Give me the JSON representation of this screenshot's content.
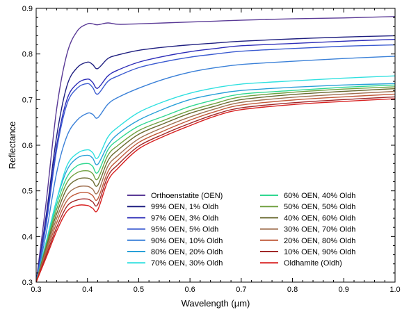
{
  "chart_data": {
    "type": "line",
    "title": "",
    "xlabel": "Wavelength (µm)",
    "ylabel": "Reflectance",
    "xlim": [
      0.3,
      1.0
    ],
    "ylim": [
      0.3,
      0.9
    ],
    "x_ticks": [
      "0.3",
      "0.4",
      "0.5",
      "0.6",
      "0.7",
      "0.8",
      "0.9",
      "1.0"
    ],
    "y_ticks": [
      "0.3",
      "0.4",
      "0.5",
      "0.6",
      "0.7",
      "0.8",
      "0.9"
    ],
    "grid": false,
    "legend_position": "bottom-right",
    "x": [
      0.3,
      0.32,
      0.34,
      0.36,
      0.38,
      0.4,
      0.41,
      0.42,
      0.44,
      0.46,
      0.5,
      0.55,
      0.6,
      0.65,
      0.7,
      0.8,
      0.9,
      1.0
    ],
    "series": [
      {
        "name": "Orthoenstatite (OEN)",
        "color": "#5a3a96",
        "values": [
          0.3,
          0.48,
          0.68,
          0.8,
          0.85,
          0.866,
          0.866,
          0.864,
          0.868,
          0.865,
          0.866,
          0.868,
          0.87,
          0.872,
          0.874,
          0.877,
          0.879,
          0.882
        ]
      },
      {
        "name": "99% OEN, 1% Oldh",
        "color": "#1f1f80",
        "values": [
          0.3,
          0.45,
          0.62,
          0.73,
          0.77,
          0.782,
          0.777,
          0.768,
          0.79,
          0.798,
          0.808,
          0.815,
          0.82,
          0.824,
          0.828,
          0.833,
          0.837,
          0.84
        ]
      },
      {
        "name": "97% OEN, 3% Oldh",
        "color": "#2d2db8",
        "values": [
          0.3,
          0.44,
          0.6,
          0.7,
          0.735,
          0.745,
          0.738,
          0.725,
          0.752,
          0.765,
          0.782,
          0.795,
          0.805,
          0.812,
          0.818,
          0.823,
          0.828,
          0.832
        ]
      },
      {
        "name": "95% OEN, 5% Oldh",
        "color": "#3a5ad0",
        "values": [
          0.3,
          0.43,
          0.59,
          0.69,
          0.725,
          0.735,
          0.727,
          0.712,
          0.74,
          0.752,
          0.77,
          0.783,
          0.793,
          0.8,
          0.806,
          0.812,
          0.817,
          0.82
        ]
      },
      {
        "name": "90% OEN, 10% Oldh",
        "color": "#3a80d8",
        "values": [
          0.3,
          0.41,
          0.54,
          0.62,
          0.655,
          0.67,
          0.668,
          0.66,
          0.69,
          0.705,
          0.725,
          0.745,
          0.76,
          0.77,
          0.777,
          0.784,
          0.79,
          0.795
        ]
      },
      {
        "name": "80% OEN, 20% Oldh",
        "color": "#28a0d8",
        "values": [
          0.3,
          0.39,
          0.48,
          0.545,
          0.572,
          0.578,
          0.572,
          0.558,
          0.6,
          0.625,
          0.655,
          0.68,
          0.7,
          0.712,
          0.72,
          0.727,
          0.732,
          0.735
        ]
      },
      {
        "name": "70% OEN, 30% Oldh",
        "color": "#30e0e0",
        "values": [
          0.3,
          0.39,
          0.48,
          0.555,
          0.582,
          0.59,
          0.584,
          0.572,
          0.618,
          0.64,
          0.672,
          0.696,
          0.714,
          0.726,
          0.734,
          0.741,
          0.747,
          0.752
        ]
      },
      {
        "name": "60% OEN, 40% Oldh",
        "color": "#30d890",
        "values": [
          0.3,
          0.385,
          0.47,
          0.53,
          0.555,
          0.56,
          0.554,
          0.54,
          0.59,
          0.612,
          0.642,
          0.664,
          0.685,
          0.7,
          0.712,
          0.72,
          0.727,
          0.732
        ]
      },
      {
        "name": "50% OEN, 50% Oldh",
        "color": "#70a040",
        "values": [
          0.3,
          0.382,
          0.46,
          0.518,
          0.54,
          0.544,
          0.538,
          0.526,
          0.578,
          0.6,
          0.632,
          0.655,
          0.676,
          0.692,
          0.706,
          0.716,
          0.723,
          0.728
        ]
      },
      {
        "name": "40% OEN, 60% Oldh",
        "color": "#6a6a30",
        "values": [
          0.3,
          0.378,
          0.45,
          0.505,
          0.525,
          0.528,
          0.522,
          0.512,
          0.566,
          0.59,
          0.624,
          0.648,
          0.67,
          0.686,
          0.7,
          0.711,
          0.718,
          0.724
        ]
      },
      {
        "name": "30% OEN, 70% Oldh",
        "color": "#a07050",
        "values": [
          0.3,
          0.372,
          0.44,
          0.49,
          0.508,
          0.51,
          0.504,
          0.496,
          0.554,
          0.578,
          0.614,
          0.64,
          0.662,
          0.68,
          0.694,
          0.705,
          0.712,
          0.718
        ]
      },
      {
        "name": "20% OEN, 80% Oldh",
        "color": "#c05a3a",
        "values": [
          0.3,
          0.366,
          0.43,
          0.478,
          0.494,
          0.496,
          0.49,
          0.482,
          0.542,
          0.568,
          0.606,
          0.632,
          0.655,
          0.674,
          0.688,
          0.699,
          0.706,
          0.712
        ]
      },
      {
        "name": "10% OEN, 90% Oldh",
        "color": "#a02828",
        "values": [
          0.3,
          0.36,
          0.42,
          0.466,
          0.48,
          0.482,
          0.476,
          0.47,
          0.532,
          0.558,
          0.598,
          0.625,
          0.648,
          0.668,
          0.682,
          0.693,
          0.7,
          0.706
        ]
      },
      {
        "name": "Oldhamite (Oldh)",
        "color": "#d82020",
        "values": [
          0.3,
          0.355,
          0.412,
          0.455,
          0.468,
          0.468,
          0.462,
          0.458,
          0.522,
          0.55,
          0.592,
          0.62,
          0.643,
          0.664,
          0.678,
          0.689,
          0.696,
          0.702
        ]
      }
    ]
  }
}
